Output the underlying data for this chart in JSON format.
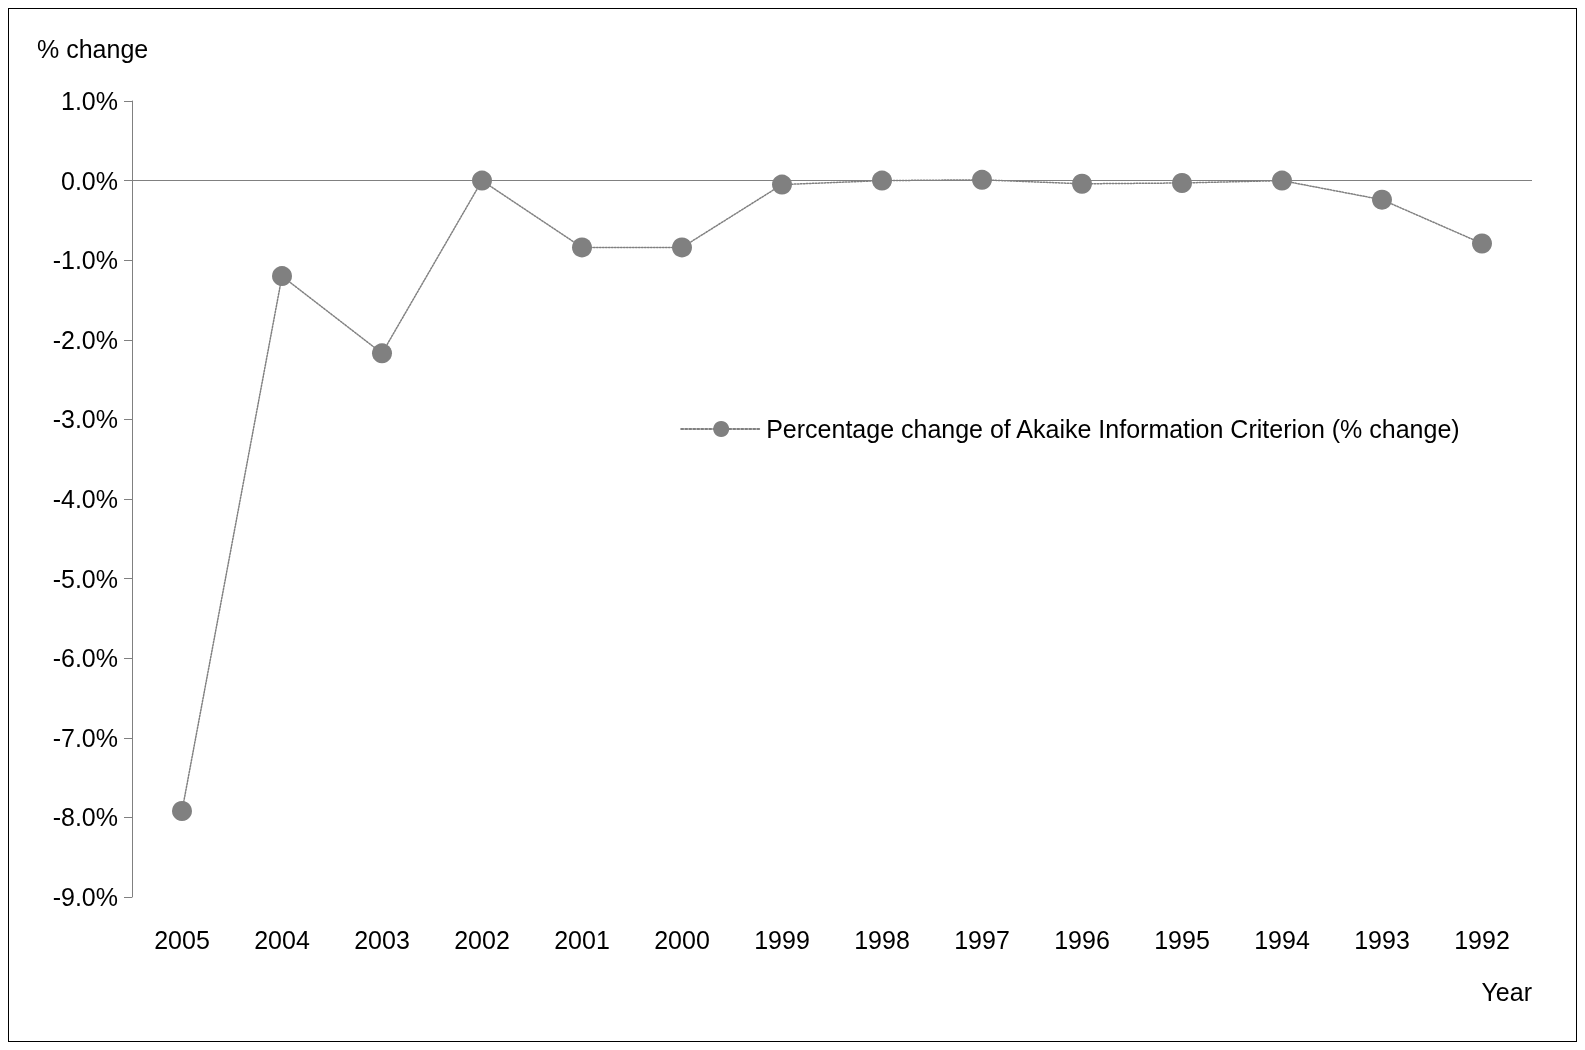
{
  "chart_data": {
    "type": "line",
    "xlabel": "Year",
    "ylabel": "% change",
    "categories": [
      "2005",
      "2004",
      "2003",
      "2002",
      "2001",
      "2000",
      "1999",
      "1998",
      "1997",
      "1996",
      "1995",
      "1994",
      "1993",
      "1992"
    ],
    "series": [
      {
        "name": "Percentage change of Akaike Information Criterion (% change)",
        "color": "#808080",
        "values": [
          -7.92,
          -1.2,
          -2.17,
          0.0,
          -0.84,
          -0.84,
          -0.05,
          0.0,
          0.01,
          -0.04,
          -0.03,
          0.0,
          -0.24,
          -0.79
        ]
      }
    ],
    "ylim": [
      -9,
      1
    ],
    "yticks": [
      {
        "value": -9,
        "label": "-9.0%"
      },
      {
        "value": -8,
        "label": "-8.0%"
      },
      {
        "value": -7,
        "label": "-7.0%"
      },
      {
        "value": -6,
        "label": "-6.0%"
      },
      {
        "value": -5,
        "label": "-5.0%"
      },
      {
        "value": -4,
        "label": "-4.0%"
      },
      {
        "value": -3,
        "label": "-3.0%"
      },
      {
        "value": -2,
        "label": "-2.0%"
      },
      {
        "value": -1,
        "label": "-1.0%"
      },
      {
        "value": 0,
        "label": "0.0%"
      },
      {
        "value": 1,
        "label": "1.0%"
      }
    ],
    "ref_lines": [
      {
        "axis": "y",
        "value": 0,
        "color": "#808080"
      }
    ],
    "grid": false,
    "legend": "right",
    "marker": "circle",
    "line_style": "dotted"
  }
}
